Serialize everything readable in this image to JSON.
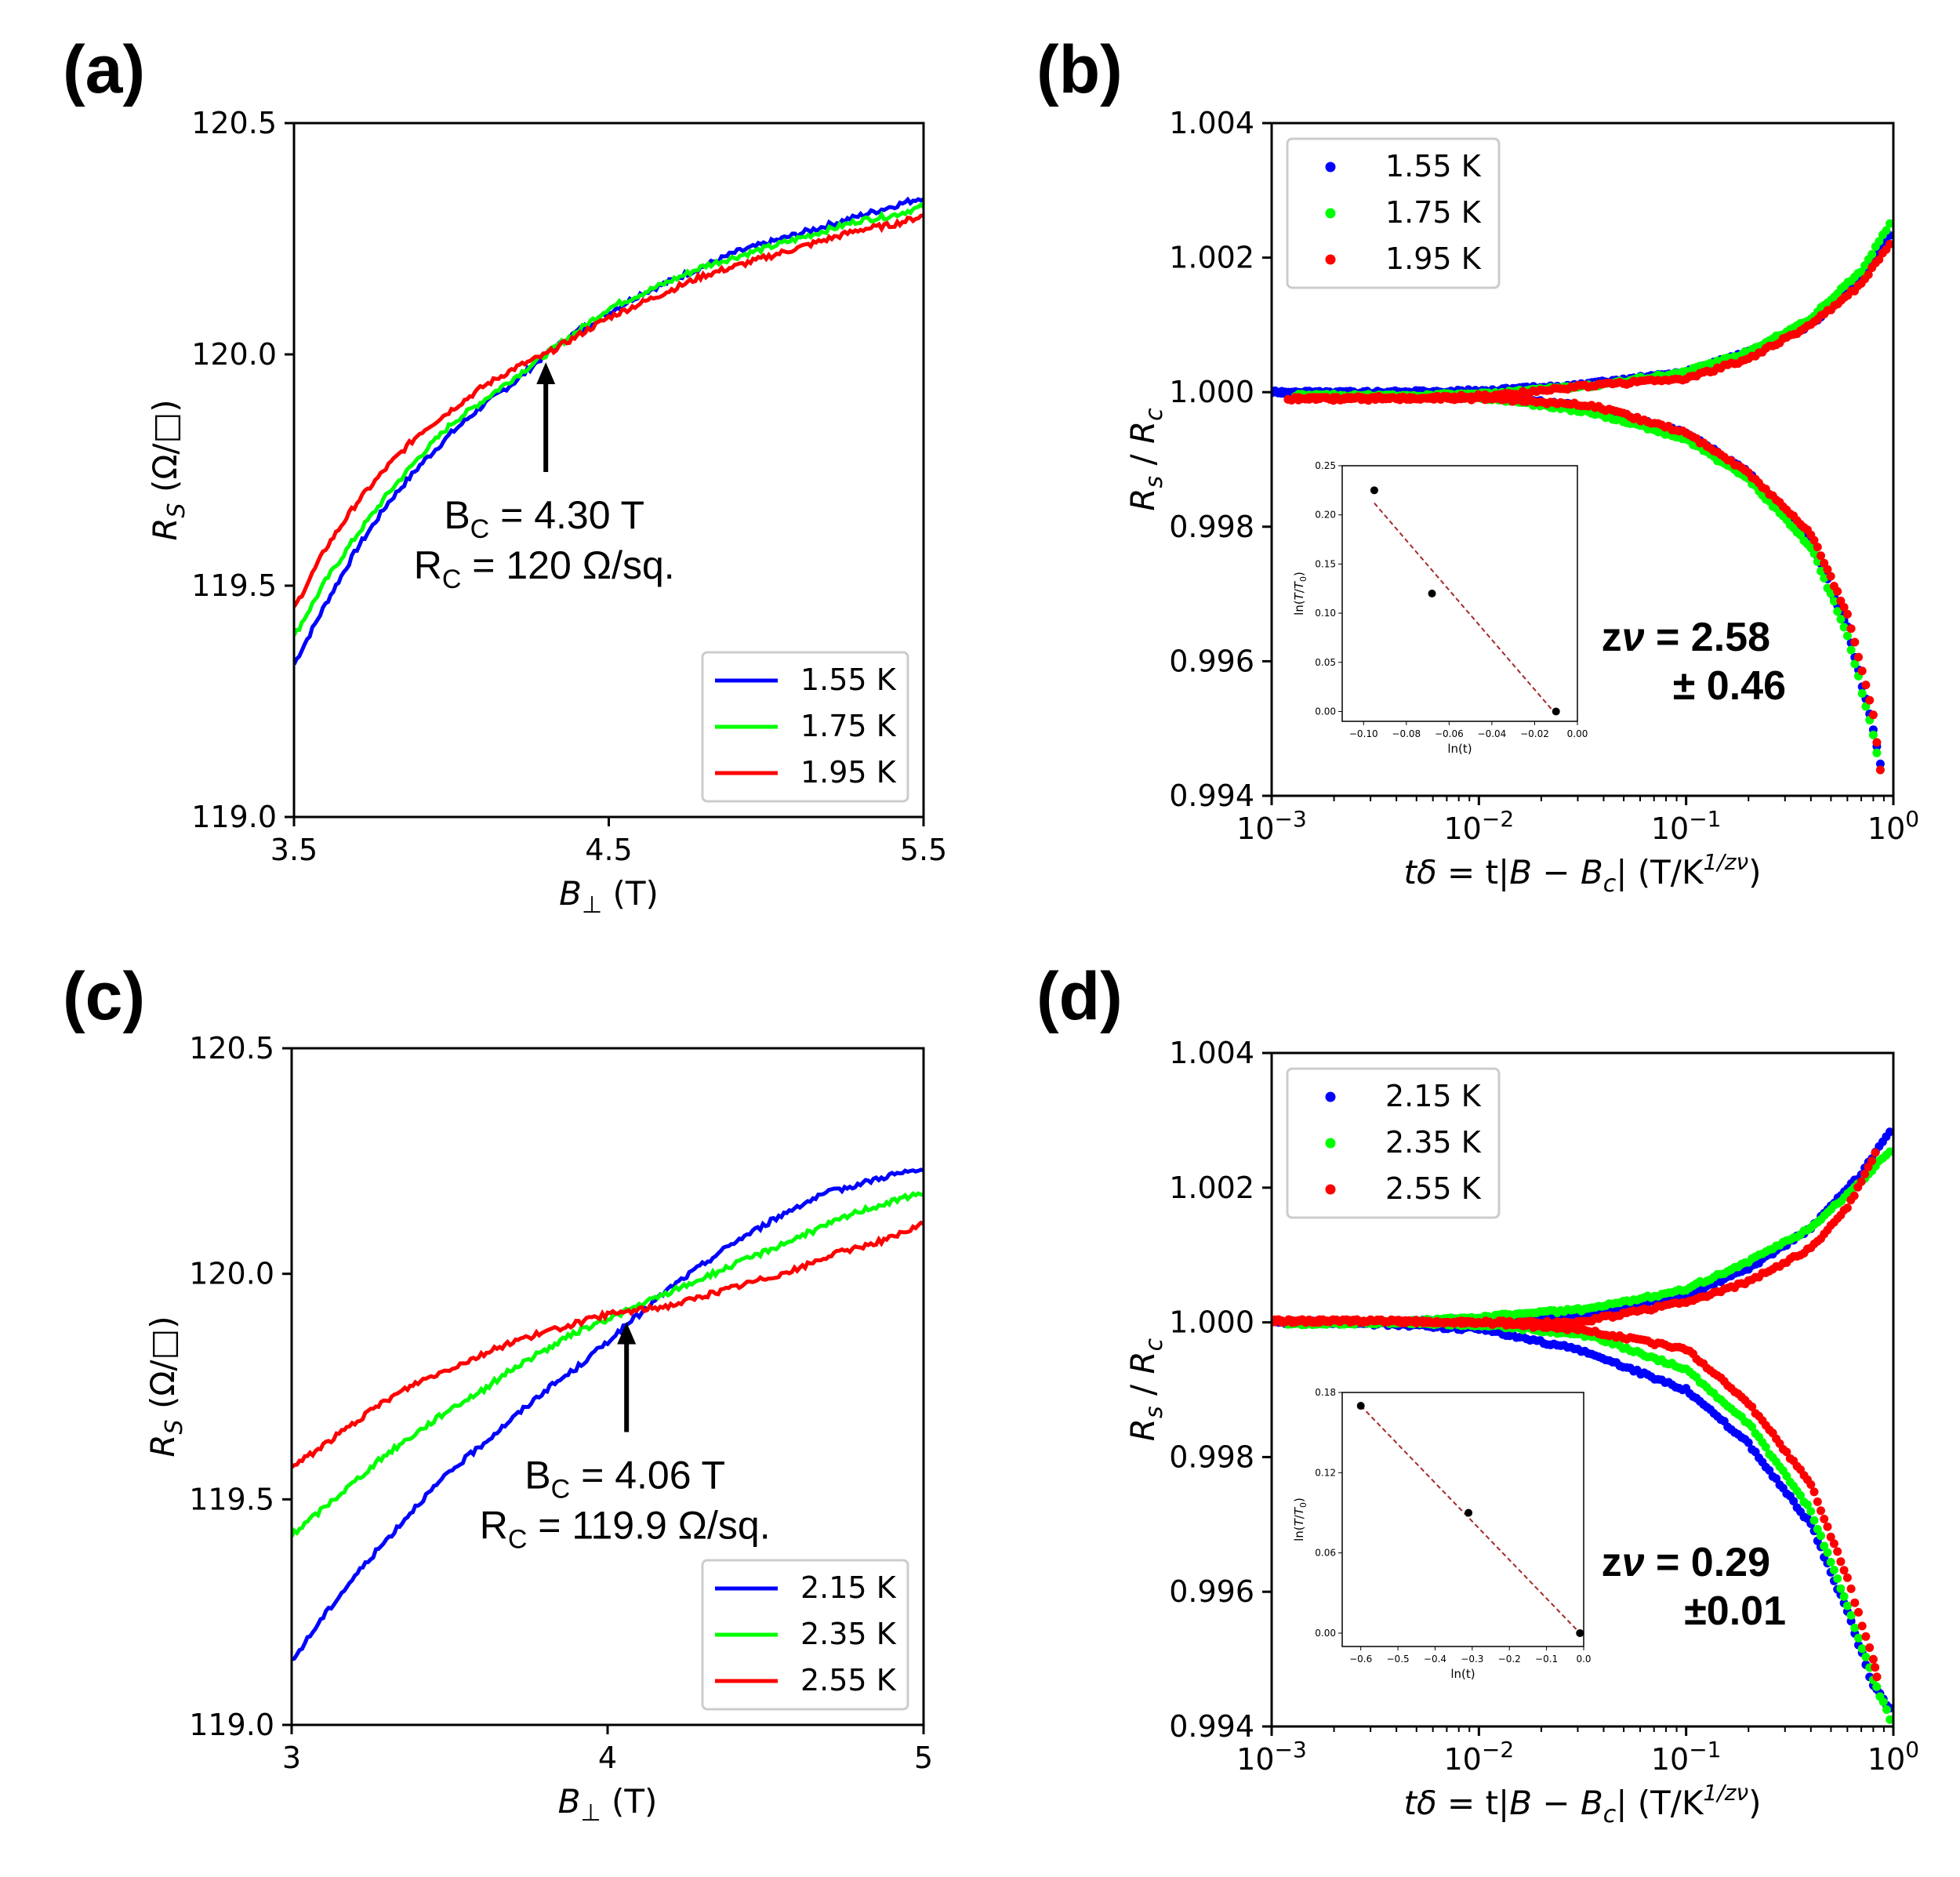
{
  "chart_data": [
    {
      "panel": "(a)",
      "type": "line",
      "xlabel": "B⊥ (T)",
      "ylabel": "RS (Ω/□)",
      "xlim": [
        3.5,
        5.5
      ],
      "ylim": [
        119.0,
        120.5
      ],
      "xticks": [
        "3.5",
        "4.5",
        "5.5"
      ],
      "yticks": [
        "119.0",
        "119.5",
        "120.0",
        "120.5"
      ],
      "series": [
        {
          "name": "1.55 K",
          "color": "#0000ff",
          "x": [
            3.5,
            3.6,
            3.7,
            3.8,
            3.9,
            4.0,
            4.1,
            4.2,
            4.3,
            4.4,
            4.5,
            4.6,
            4.7,
            4.8,
            4.9,
            5.0,
            5.1,
            5.2,
            5.3,
            5.4,
            5.5
          ],
          "y": [
            119.33,
            119.46,
            119.58,
            119.68,
            119.76,
            119.83,
            119.89,
            119.94,
            120.0,
            120.05,
            120.09,
            120.13,
            120.16,
            120.19,
            120.22,
            120.24,
            120.26,
            120.28,
            120.3,
            120.32,
            120.34
          ]
        },
        {
          "name": "1.75 K",
          "color": "#00ff00",
          "x": [
            3.5,
            3.6,
            3.7,
            3.8,
            3.9,
            4.0,
            4.1,
            4.2,
            4.3,
            4.4,
            4.5,
            4.6,
            4.7,
            4.8,
            4.9,
            5.0,
            5.1,
            5.2,
            5.3,
            5.4,
            5.5
          ],
          "y": [
            119.39,
            119.51,
            119.61,
            119.7,
            119.78,
            119.85,
            119.9,
            119.95,
            120.0,
            120.05,
            120.1,
            120.13,
            120.16,
            120.19,
            120.21,
            120.23,
            120.25,
            120.27,
            120.29,
            120.3,
            120.32
          ]
        },
        {
          "name": "1.95 K",
          "color": "#ff0000",
          "x": [
            3.5,
            3.6,
            3.7,
            3.8,
            3.9,
            4.0,
            4.1,
            4.2,
            4.3,
            4.4,
            4.5,
            4.6,
            4.7,
            4.8,
            4.9,
            5.0,
            5.1,
            5.2,
            5.3,
            5.4,
            5.5
          ],
          "y": [
            119.45,
            119.58,
            119.68,
            119.76,
            119.83,
            119.88,
            119.93,
            119.97,
            120.0,
            120.04,
            120.08,
            120.11,
            120.14,
            120.17,
            120.19,
            120.21,
            120.23,
            120.25,
            120.27,
            120.28,
            120.3
          ]
        }
      ],
      "legend": "lower-right",
      "annotation": {
        "x": 4.3,
        "y": 120.0,
        "line1": {
          "main": "B",
          "sub": "C",
          "rest": " = 4.30 T"
        },
        "line2": {
          "main": "R",
          "sub": "C",
          "rest": " = 120 Ω/sq."
        }
      }
    },
    {
      "panel": "(b)",
      "type": "scatter",
      "xscale": "log",
      "xlabel": "tδ = t|B − Bc| (T/K^(1/zν))",
      "ylabel": "Rs / Rc",
      "xlim": [
        0.001,
        1
      ],
      "ylim": [
        0.994,
        1.004
      ],
      "xticks": [
        "10⁻³",
        "10⁻²",
        "10⁻¹",
        "10⁰"
      ],
      "yticks": [
        "0.994",
        "0.996",
        "0.998",
        "1.000",
        "1.002",
        "1.004"
      ],
      "series": [
        {
          "name": "1.55 K",
          "color": "#0000ff",
          "upper_x": [
            0.001,
            0.003,
            0.01,
            0.03,
            0.1,
            0.2,
            0.4,
            0.7,
            1.0
          ],
          "upper_y": [
            1.0,
            1.0,
            1.00002,
            1.0001,
            1.0003,
            1.0006,
            1.001,
            1.0017,
            1.0024
          ],
          "lower_x": [
            0.001,
            0.003,
            0.01,
            0.03,
            0.1,
            0.2,
            0.4,
            0.6,
            0.8,
            0.9
          ],
          "lower_y": [
            1.0,
            0.99999,
            0.99995,
            0.9998,
            0.9994,
            0.9988,
            0.9978,
            0.9965,
            0.995,
            0.9942
          ]
        },
        {
          "name": "1.75 K",
          "color": "#00ff00",
          "upper_x": [
            0.0013,
            0.004,
            0.012,
            0.035,
            0.1,
            0.2,
            0.4,
            0.7,
            1.0
          ],
          "upper_y": [
            0.99995,
            0.99995,
            0.99998,
            1.0001,
            1.0003,
            1.0006,
            1.0011,
            1.0018,
            1.0026
          ],
          "lower_x": [
            0.0013,
            0.004,
            0.012,
            0.035,
            0.1,
            0.2,
            0.4,
            0.6,
            0.8,
            0.9
          ],
          "lower_y": [
            0.99995,
            0.99993,
            0.9999,
            0.9997,
            0.9993,
            0.9987,
            0.9977,
            0.9964,
            0.9949,
            0.9941
          ]
        },
        {
          "name": "1.95 K",
          "color": "#ff0000",
          "upper_x": [
            0.0012,
            0.004,
            0.012,
            0.035,
            0.1,
            0.2,
            0.4,
            0.7,
            1.0
          ],
          "upper_y": [
            0.9999,
            0.9999,
            0.99995,
            1.0001,
            1.0002,
            1.0005,
            1.001,
            1.0016,
            1.0023
          ],
          "lower_x": [
            0.0012,
            0.004,
            0.012,
            0.035,
            0.1,
            0.2,
            0.4,
            0.6,
            0.8,
            0.9
          ],
          "lower_y": [
            0.9999,
            0.99992,
            0.9999,
            0.9998,
            0.9994,
            0.9988,
            0.9979,
            0.9967,
            0.9952,
            0.994
          ]
        }
      ],
      "legend": "upper-left",
      "zv": {
        "line1": "zν = 2.58",
        "line2": "± 0.46"
      },
      "inset": {
        "xlabel": "ln(t)",
        "ylabel": "ln(T/T0)",
        "xlim": [
          -0.11,
          0.0
        ],
        "ylim": [
          -0.01,
          0.25
        ],
        "xticks": [
          "−0.10",
          "−0.08",
          "−0.06",
          "−0.04",
          "−0.02",
          "0.00"
        ],
        "yticks": [
          "0.00",
          "0.05",
          "0.10",
          "0.15",
          "0.20",
          "0.25"
        ],
        "points": [
          {
            "x": -0.095,
            "y": 0.225
          },
          {
            "x": -0.068,
            "y": 0.12
          },
          {
            "x": -0.01,
            "y": 0.0
          }
        ],
        "fit": [
          {
            "x": -0.095,
            "y": 0.212
          },
          {
            "x": -0.01,
            "y": -0.003
          }
        ]
      }
    },
    {
      "panel": "(c)",
      "type": "line",
      "xlabel": "B⊥ (T)",
      "ylabel": "RS (Ω/□)",
      "xlim": [
        3,
        5
      ],
      "ylim": [
        119.0,
        120.5
      ],
      "xticks": [
        "3",
        "4",
        "5"
      ],
      "yticks": [
        "119.0",
        "119.5",
        "120.0",
        "120.5"
      ],
      "series": [
        {
          "name": "2.15 K",
          "color": "#0000ff",
          "x": [
            3.0,
            3.1,
            3.2,
            3.3,
            3.4,
            3.5,
            3.6,
            3.7,
            3.8,
            3.9,
            4.0,
            4.1,
            4.2,
            4.3,
            4.4,
            4.5,
            4.6,
            4.7,
            4.8,
            4.9,
            5.0
          ],
          "y": [
            119.14,
            119.24,
            119.33,
            119.41,
            119.49,
            119.56,
            119.62,
            119.68,
            119.74,
            119.79,
            119.85,
            119.91,
            119.97,
            120.02,
            120.07,
            120.11,
            120.15,
            120.18,
            120.2,
            120.22,
            120.23
          ]
        },
        {
          "name": "2.35 K",
          "color": "#00ff00",
          "x": [
            3.0,
            3.1,
            3.2,
            3.3,
            3.4,
            3.5,
            3.6,
            3.7,
            3.8,
            3.9,
            4.0,
            4.1,
            4.2,
            4.3,
            4.4,
            4.5,
            4.6,
            4.7,
            4.8,
            4.9,
            5.0
          ],
          "y": [
            119.42,
            119.48,
            119.54,
            119.6,
            119.65,
            119.7,
            119.74,
            119.79,
            119.83,
            119.87,
            119.9,
            119.93,
            119.96,
            119.99,
            120.02,
            120.05,
            120.08,
            120.11,
            120.14,
            120.16,
            120.18
          ]
        },
        {
          "name": "2.55 K",
          "color": "#ff0000",
          "x": [
            3.0,
            3.1,
            3.2,
            3.3,
            3.4,
            3.5,
            3.6,
            3.7,
            3.8,
            3.9,
            4.0,
            4.1,
            4.2,
            4.3,
            4.4,
            4.5,
            4.6,
            4.7,
            4.8,
            4.9,
            5.0
          ],
          "y": [
            119.57,
            119.62,
            119.67,
            119.72,
            119.76,
            119.79,
            119.82,
            119.85,
            119.87,
            119.89,
            119.91,
            119.92,
            119.93,
            119.95,
            119.97,
            119.99,
            120.01,
            120.04,
            120.06,
            120.08,
            120.11
          ]
        }
      ],
      "legend": "lower-right",
      "annotation": {
        "x": 4.06,
        "y": 119.91,
        "line1": {
          "main": "B",
          "sub": "C",
          "rest": " = 4.06 T"
        },
        "line2": {
          "main": "R",
          "sub": "C",
          "rest": " = 119.9 Ω/sq."
        }
      }
    },
    {
      "panel": "(d)",
      "type": "scatter",
      "xscale": "log",
      "xlabel": "tδ = t|B − Bc| (T/K^(1/zν))",
      "ylabel": "Rs / Rc",
      "xlim": [
        0.001,
        1
      ],
      "ylim": [
        0.994,
        1.004
      ],
      "xticks": [
        "10⁻³",
        "10⁻²",
        "10⁻¹",
        "10⁰"
      ],
      "yticks": [
        "0.994",
        "0.996",
        "0.998",
        "1.000",
        "1.002",
        "1.004"
      ],
      "series": [
        {
          "name": "2.15 K",
          "color": "#0000ff",
          "upper_x": [
            0.001,
            0.003,
            0.01,
            0.03,
            0.1,
            0.2,
            0.4,
            0.7,
            1.0
          ],
          "upper_y": [
            1.0,
            1.0,
            1.00005,
            1.0001,
            1.0004,
            1.0008,
            1.0014,
            1.0022,
            1.0029
          ],
          "lower_x": [
            0.001,
            0.003,
            0.01,
            0.03,
            0.1,
            0.2,
            0.4,
            0.6,
            0.8,
            1.0
          ],
          "lower_y": [
            1.0,
            0.99998,
            0.9999,
            0.9996,
            0.999,
            0.9982,
            0.997,
            0.9957,
            0.9946,
            0.9942
          ]
        },
        {
          "name": "2.35 K",
          "color": "#00ff00",
          "upper_x": [
            0.0012,
            0.004,
            0.012,
            0.035,
            0.1,
            0.2,
            0.4,
            0.7,
            1.0
          ],
          "upper_y": [
            0.99998,
            1.0,
            1.0001,
            1.0002,
            1.0005,
            1.0009,
            1.0014,
            1.0021,
            1.0026
          ],
          "lower_x": [
            0.0012,
            0.004,
            0.012,
            0.035,
            0.1,
            0.2,
            0.4,
            0.6,
            0.8,
            1.0
          ],
          "lower_y": [
            0.99998,
            1.0,
            0.99995,
            0.9998,
            0.9993,
            0.9985,
            0.9972,
            0.9958,
            0.9947,
            0.994
          ]
        },
        {
          "name": "2.55 K",
          "color": "#ff0000",
          "upper_x": [
            0.001,
            0.003,
            0.01,
            0.03,
            0.1,
            0.2,
            0.4,
            0.6,
            0.85
          ],
          "upper_y": [
            1.00002,
            1.00002,
            1.0,
            1.0,
            1.0003,
            1.0006,
            1.0011,
            1.0017,
            1.0026
          ],
          "lower_x": [
            0.001,
            0.003,
            0.01,
            0.03,
            0.1,
            0.2,
            0.4,
            0.6,
            0.8,
            0.85
          ],
          "lower_y": [
            1.00002,
            1.00002,
            1.0,
            0.9999,
            0.9996,
            0.9988,
            0.9976,
            0.9962,
            0.995,
            0.9946
          ]
        }
      ],
      "legend": "upper-left",
      "zv": {
        "line1": "zν = 0.29",
        "line2": "±0.01"
      },
      "inset": {
        "xlabel": "ln(t)",
        "ylabel": "ln(T/T0)",
        "xlim": [
          -0.65,
          0.0
        ],
        "ylim": [
          -0.01,
          0.18
        ],
        "xticks": [
          "−0.6",
          "−0.5",
          "−0.4",
          "−0.3",
          "−0.2",
          "−0.1",
          "0.0"
        ],
        "yticks": [
          "0.00",
          "0.06",
          "0.12",
          "0.18"
        ],
        "points": [
          {
            "x": -0.6,
            "y": 0.17
          },
          {
            "x": -0.31,
            "y": 0.09
          },
          {
            "x": -0.01,
            "y": 0.0
          }
        ],
        "fit": [
          {
            "x": -0.6,
            "y": 0.17
          },
          {
            "x": -0.01,
            "y": 0.0
          }
        ]
      }
    }
  ]
}
